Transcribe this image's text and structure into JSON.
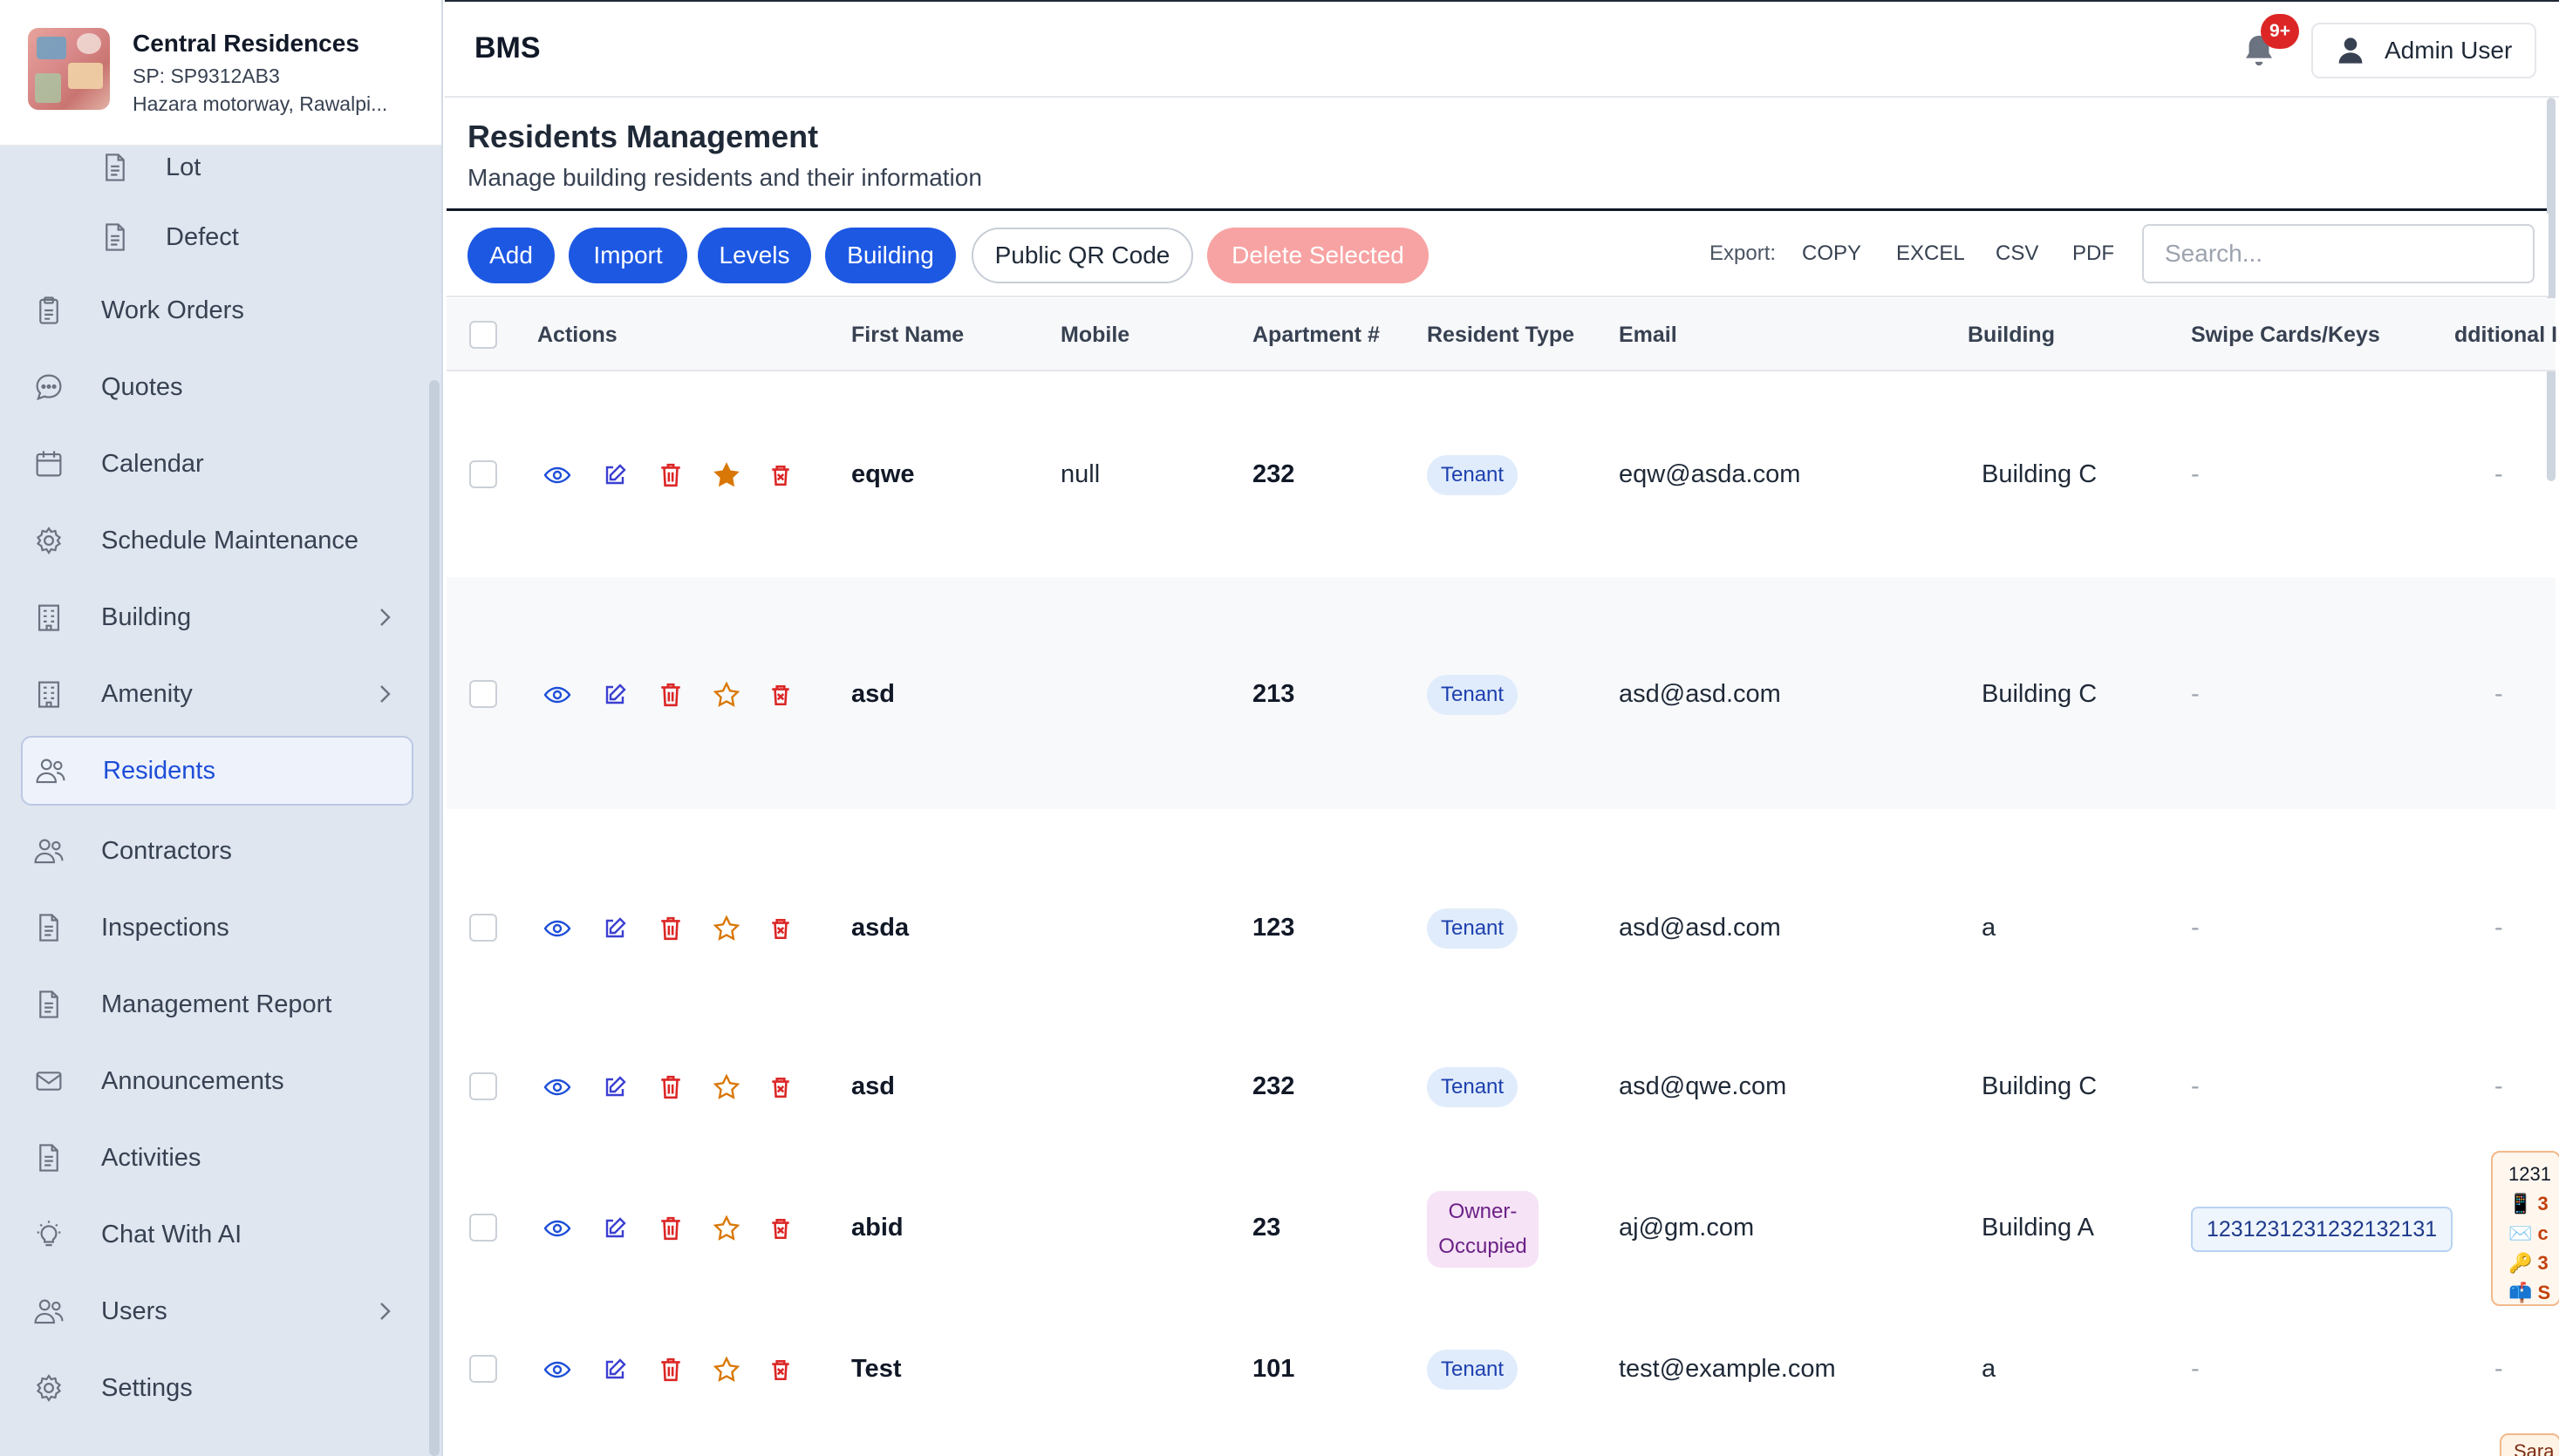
{
  "brand": {
    "name": "Central Residences",
    "sp": "SP: SP9312AB3",
    "address": "Hazara motorway, Rawalpi..."
  },
  "sidebar": {
    "items": [
      {
        "label": "Lot",
        "icon": "document-icon",
        "sub": true
      },
      {
        "label": "Defect",
        "icon": "document-icon",
        "sub": true
      },
      {
        "label": "Work Orders",
        "icon": "clipboard-icon"
      },
      {
        "label": "Quotes",
        "icon": "chat-bubble-icon"
      },
      {
        "label": "Calendar",
        "icon": "calendar-icon"
      },
      {
        "label": "Schedule Maintenance",
        "icon": "gear-icon"
      },
      {
        "label": "Building",
        "icon": "building-icon",
        "expandable": true
      },
      {
        "label": "Amenity",
        "icon": "building-icon",
        "expandable": true
      },
      {
        "label": "Residents",
        "icon": "people-icon",
        "active": true
      },
      {
        "label": "Contractors",
        "icon": "people-icon"
      },
      {
        "label": "Inspections",
        "icon": "document-icon"
      },
      {
        "label": "Management Report",
        "icon": "document-icon"
      },
      {
        "label": "Announcements",
        "icon": "mail-icon"
      },
      {
        "label": "Activities",
        "icon": "document-icon"
      },
      {
        "label": "Chat With AI",
        "icon": "lightbulb-icon"
      },
      {
        "label": "Users",
        "icon": "people-icon",
        "expandable": true
      },
      {
        "label": "Settings",
        "icon": "gear-icon"
      }
    ]
  },
  "topbar": {
    "title": "BMS",
    "notification_badge": "9+",
    "user_label": "Admin User"
  },
  "page": {
    "title": "Residents Management",
    "subtitle": "Manage building residents and their information"
  },
  "toolbar": {
    "add": "Add",
    "import": "Import",
    "levels": "Levels",
    "building": "Building",
    "qr": "Public QR Code",
    "delete_selected": "Delete Selected",
    "export_label": "Export:",
    "export_copy": "COPY",
    "export_excel": "EXCEL",
    "export_csv": "CSV",
    "export_pdf": "PDF",
    "search_placeholder": "Search..."
  },
  "table": {
    "headers": {
      "actions": "Actions",
      "first_name": "First Name",
      "mobile": "Mobile",
      "apartment": "Apartment #",
      "resident_type": "Resident Type",
      "email": "Email",
      "building": "Building",
      "swipe_cards": "Swipe Cards/Keys",
      "additional": "dditional I"
    },
    "rows": [
      {
        "first_name": "eqwe",
        "mobile": "null",
        "apartment": "232",
        "resident_type": "Tenant",
        "email": "eqw@asda.com",
        "building": "Building C",
        "swipe": "-",
        "additional": "-",
        "favorite": true
      },
      {
        "first_name": "asd",
        "mobile": "",
        "apartment": "213",
        "resident_type": "Tenant",
        "email": "asd@asd.com",
        "building": "Building C",
        "swipe": "-",
        "additional": "-",
        "favorite": false
      },
      {
        "first_name": "asda",
        "mobile": "",
        "apartment": "123",
        "resident_type": "Tenant",
        "email": "asd@asd.com",
        "building": "a",
        "swipe": "-",
        "additional": "-",
        "favorite": false
      },
      {
        "first_name": "asd",
        "mobile": "",
        "apartment": "232",
        "resident_type": "Tenant",
        "email": "asd@qwe.com",
        "building": "Building C",
        "swipe": "-",
        "additional": "-",
        "favorite": false
      },
      {
        "first_name": "abid",
        "mobile": "",
        "apartment": "23",
        "resident_type_line1": "Owner-",
        "resident_type_line2": "Occupied",
        "email": "aj@gm.com",
        "building": "Building A",
        "swipe": "1231231231232132131",
        "additional": "",
        "favorite": false
      },
      {
        "first_name": "Test",
        "mobile": "",
        "apartment": "101",
        "resident_type": "Tenant",
        "email": "test@example.com",
        "building": "a",
        "swipe": "-",
        "additional": "-",
        "favorite": false
      }
    ],
    "additional_popover": {
      "line1": "1231",
      "line2": "3",
      "line3": "c",
      "line4": "3",
      "line5": "S"
    },
    "additional_popover2": "Sara"
  },
  "colors": {
    "primary": "#1d58e3",
    "danger_disabled": "#f8a3a3",
    "sidebar_bg": "#dfe6f0",
    "active_text": "#1d4ed8",
    "eye_icon": "#1d4ed8",
    "edit_icon": "#3b3fd1",
    "delete_icon": "#dc2626",
    "star_icon": "#d97706"
  }
}
